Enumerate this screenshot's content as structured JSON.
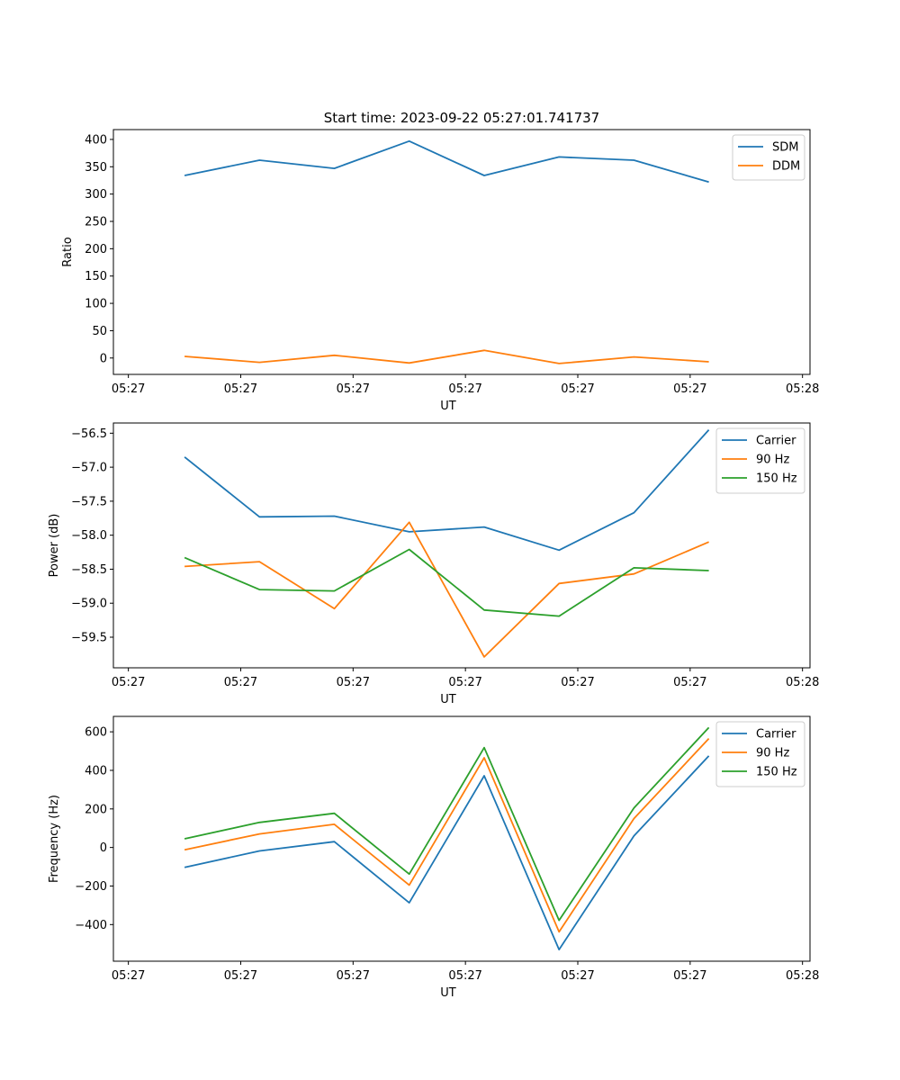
{
  "title": "Start time: 2023-09-22 05:27:01.741737",
  "colors": {
    "c0": "#1f77b4",
    "c1": "#ff7f0e",
    "c2": "#2ca02c"
  },
  "chart_data": [
    {
      "type": "line",
      "xlabel": "UT",
      "ylabel": "Ratio",
      "ylim": [
        -30,
        418
      ],
      "yticks": [
        0,
        50,
        100,
        150,
        200,
        250,
        300,
        350,
        400
      ],
      "xlim": [
        -0.2,
        9.1
      ],
      "xtick_positions": [
        0,
        1.5,
        3,
        4.5,
        6,
        7.5,
        9
      ],
      "xtick_labels": [
        "05:27",
        "05:27",
        "05:27",
        "05:27",
        "05:27",
        "05:27",
        "05:28"
      ],
      "x": [
        0.75,
        1.75,
        2.75,
        3.75,
        4.75,
        5.75,
        6.75,
        7.75
      ],
      "legend_location": "upper right",
      "series": [
        {
          "name": "SDM",
          "color": "#1f77b4",
          "values": [
            334,
            362,
            347,
            397,
            334,
            368,
            362,
            322
          ]
        },
        {
          "name": "DDM",
          "color": "#ff7f0e",
          "values": [
            3,
            -8,
            5,
            -9,
            14,
            -10,
            2,
            -7
          ]
        }
      ]
    },
    {
      "type": "line",
      "xlabel": "UT",
      "ylabel": "Power (dB)",
      "ylim": [
        -59.95,
        -56.35
      ],
      "yticks": [
        -59.5,
        -59.0,
        -58.5,
        -58.0,
        -57.5,
        -57.0,
        -56.5
      ],
      "ytick_labels": [
        "−59.5",
        "−59.0",
        "−58.5",
        "−58.0",
        "−57.5",
        "−57.0",
        "−56.5"
      ],
      "xlim": [
        -0.2,
        9.1
      ],
      "xtick_positions": [
        0,
        1.5,
        3,
        4.5,
        6,
        7.5,
        9
      ],
      "xtick_labels": [
        "05:27",
        "05:27",
        "05:27",
        "05:27",
        "05:27",
        "05:27",
        "05:28"
      ],
      "x": [
        0.75,
        1.75,
        2.75,
        3.75,
        4.75,
        5.75,
        6.75,
        7.75
      ],
      "legend_location": "upper right",
      "series": [
        {
          "name": "Carrier",
          "color": "#1f77b4",
          "values": [
            -56.85,
            -57.73,
            -57.72,
            -57.95,
            -57.88,
            -58.22,
            -57.67,
            -56.45
          ]
        },
        {
          "name": "90 Hz",
          "color": "#ff7f0e",
          "values": [
            -58.46,
            -58.39,
            -59.08,
            -57.81,
            -59.79,
            -58.71,
            -58.57,
            -58.1
          ]
        },
        {
          "name": "150 Hz",
          "color": "#2ca02c",
          "values": [
            -58.33,
            -58.8,
            -58.82,
            -58.21,
            -59.1,
            -59.19,
            -58.48,
            -58.52
          ]
        }
      ]
    },
    {
      "type": "line",
      "xlabel": "UT",
      "ylabel": "Frequency (Hz)",
      "ylim": [
        -590,
        680
      ],
      "yticks": [
        -400,
        -200,
        0,
        200,
        400,
        600
      ],
      "ytick_labels": [
        "−400",
        "−200",
        "0",
        "200",
        "400",
        "600"
      ],
      "xlim": [
        -0.2,
        9.1
      ],
      "xtick_positions": [
        0,
        1.5,
        3,
        4.5,
        6,
        7.5,
        9
      ],
      "xtick_labels": [
        "05:27",
        "05:27",
        "05:27",
        "05:27",
        "05:27",
        "05:27",
        "05:28"
      ],
      "x": [
        0.75,
        1.75,
        2.75,
        3.75,
        4.75,
        5.75,
        6.75,
        7.75
      ],
      "legend_location": "upper right",
      "series": [
        {
          "name": "Carrier",
          "color": "#1f77b4",
          "values": [
            -103,
            -18,
            30,
            -287,
            372,
            -530,
            60,
            475
          ]
        },
        {
          "name": "90 Hz",
          "color": "#ff7f0e",
          "values": [
            -12,
            70,
            120,
            -195,
            465,
            -438,
            150,
            565
          ]
        },
        {
          "name": "150 Hz",
          "color": "#2ca02c",
          "values": [
            45,
            130,
            177,
            -138,
            518,
            -378,
            205,
            622
          ]
        }
      ]
    }
  ]
}
